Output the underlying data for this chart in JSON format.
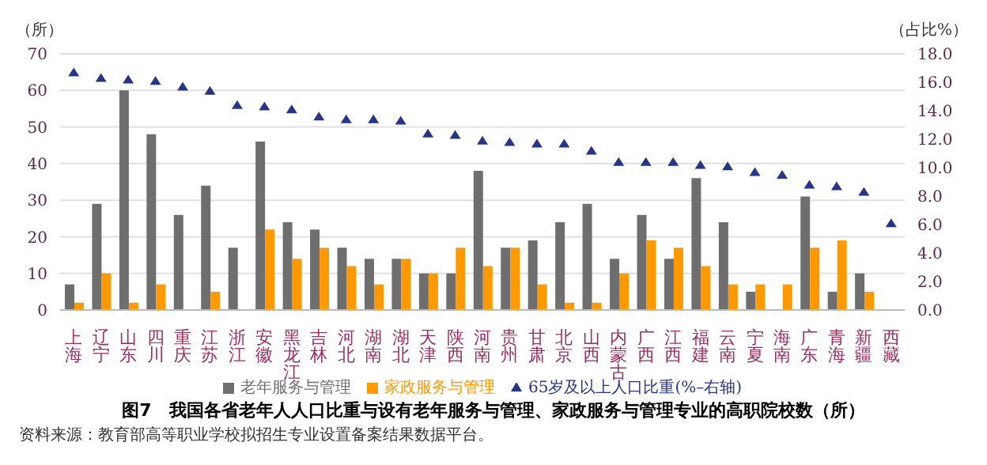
{
  "chart_data": {
    "type": "bar",
    "title": "图7　我国各省老年人人口比重与设有老年服务与管理、家政服务与管理专业的高职院校数（所）",
    "ylabel": "（所）",
    "y2label": "（占比%）",
    "annotations": [
      "资料来源：教育部高等职业学校拟招生专业设置备案结果数据平台。"
    ],
    "categories": [
      "上海",
      "辽宁",
      "山东",
      "四川",
      "重庆",
      "江苏",
      "浙江",
      "安徽",
      "黑龙江",
      "吉林",
      "河北",
      "湖南",
      "湖北",
      "天津",
      "陕西",
      "河南",
      "贵州",
      "甘肃",
      "北京",
      "山西",
      "内蒙古",
      "广西",
      "江西",
      "福建",
      "云南",
      "宁夏",
      "海南",
      "广东",
      "青海",
      "新疆",
      "西藏"
    ],
    "series": [
      {
        "name": "老年服务与管理",
        "color": "#6e6e6e",
        "values": [
          7,
          29,
          60,
          48,
          26,
          34,
          17,
          46,
          24,
          22,
          17,
          14,
          14,
          10,
          10,
          38,
          17,
          19,
          24,
          29,
          14,
          26,
          14,
          36,
          24,
          5,
          0,
          31,
          5,
          10,
          0
        ]
      },
      {
        "name": "家政服务与管理",
        "color": "#ff9900",
        "values": [
          2,
          10,
          2,
          7,
          0,
          5,
          0,
          22,
          14,
          17,
          12,
          7,
          14,
          10,
          17,
          12,
          17,
          7,
          2,
          2,
          10,
          19,
          17,
          12,
          7,
          7,
          7,
          17,
          19,
          5,
          0
        ]
      },
      {
        "name": "65岁及以上人口比重(%–右轴)",
        "type": "scatter",
        "axis": "y2",
        "color": "#26348b",
        "values": [
          16.7,
          16.3,
          16.2,
          16.1,
          15.7,
          15.4,
          14.4,
          14.3,
          14.1,
          13.6,
          13.4,
          13.4,
          13.3,
          12.4,
          12.3,
          11.9,
          11.8,
          11.7,
          11.7,
          11.2,
          10.4,
          10.4,
          10.4,
          10.2,
          10.1,
          9.7,
          9.5,
          8.8,
          8.7,
          8.3,
          6.1
        ]
      }
    ],
    "ylim": [
      0,
      70
    ],
    "yticks": [
      0,
      10,
      20,
      30,
      40,
      50,
      60,
      70
    ],
    "y2lim": [
      0,
      18
    ],
    "y2ticks": [
      {
        "value": 0,
        "label": "0.0"
      },
      {
        "value": 2,
        "label": "2.0"
      },
      {
        "value": 4,
        "label": "4.0"
      },
      {
        "value": 6,
        "label": "6.0"
      },
      {
        "value": 8,
        "label": "8.0"
      },
      {
        "value": 10,
        "label": "10.0"
      },
      {
        "value": 12,
        "label": "12.0"
      },
      {
        "value": 14,
        "label": "14.0"
      },
      {
        "value": 16,
        "label": "16.0"
      },
      {
        "value": 18,
        "label": "18.0"
      }
    ],
    "grid": "y",
    "legend": "bottom",
    "marker": "triangle"
  }
}
